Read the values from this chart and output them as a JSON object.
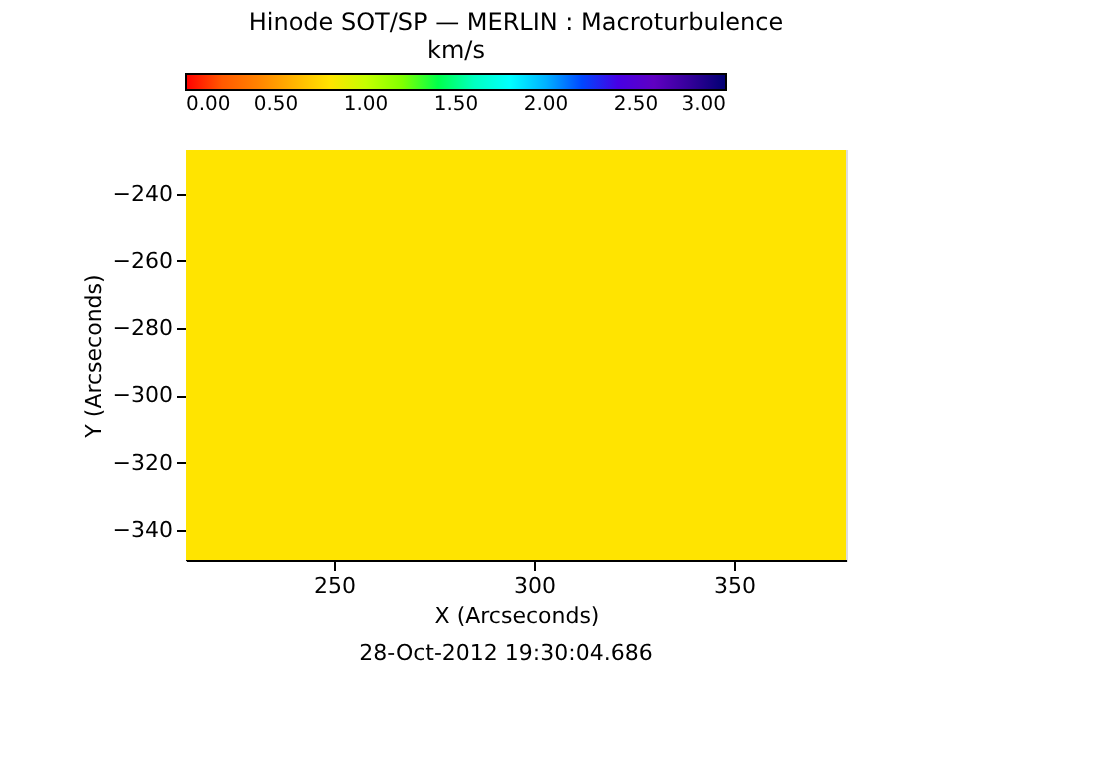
{
  "chart_data": {
    "type": "heatmap",
    "title": "Hinode SOT/SP — MERLIN : Macroturbulence",
    "xlabel": "X (Arcseconds)",
    "ylabel": "Y (Arcseconds)",
    "clabel": "km/s",
    "cells": [
      [
        0.8
      ]
    ],
    "xlim": [
      213,
      378
    ],
    "ylim": [
      -349,
      -227
    ],
    "xticks": [
      250,
      300,
      350
    ],
    "yticks": [
      -340,
      -320,
      -300,
      -280,
      -260,
      -240
    ],
    "clim": [
      0,
      3
    ],
    "cticks": [
      {
        "value": 0,
        "label": "0.00"
      },
      {
        "value": 0.5,
        "label": "0.50"
      },
      {
        "value": 1,
        "label": "1.00"
      },
      {
        "value": 1.5,
        "label": "1.50"
      },
      {
        "value": 2,
        "label": "2.00"
      },
      {
        "value": 2.5,
        "label": "2.50"
      },
      {
        "value": 3,
        "label": "3.00"
      }
    ],
    "annotations": [
      "28-Oct-2012 19:30:04.686"
    ]
  }
}
